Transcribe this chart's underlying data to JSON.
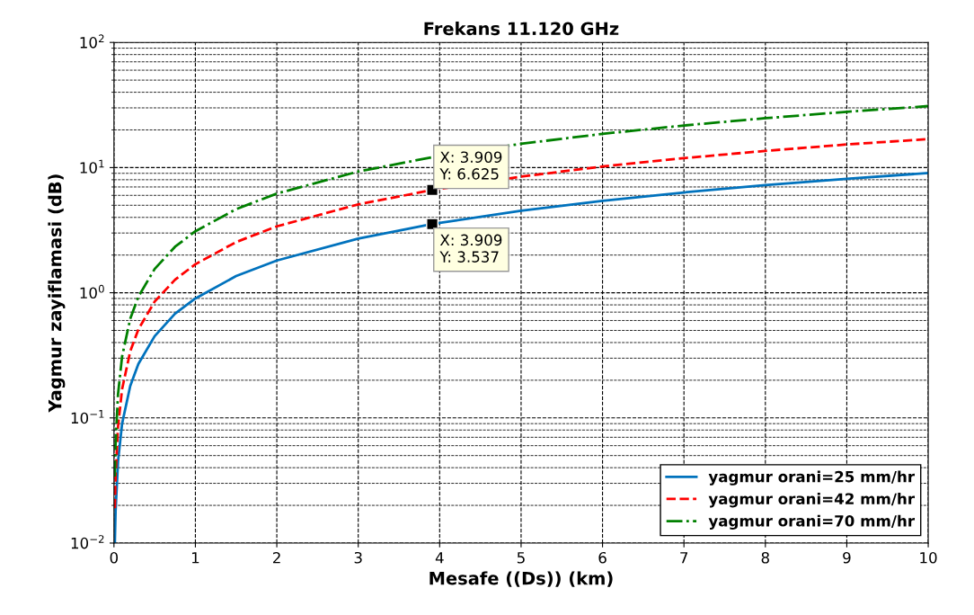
{
  "chart_data": {
    "type": "line",
    "title": "Frekans 11.120 GHz",
    "xlabel": "Mesafe ((Ds)) (km)",
    "ylabel": "Yagmur zayiflamasi (dB)",
    "x": [
      0.011,
      0.02,
      0.05,
      0.1,
      0.2,
      0.3,
      0.5,
      0.75,
      1,
      1.5,
      2,
      3,
      3.909,
      5,
      6,
      7,
      8,
      9,
      10
    ],
    "series": [
      {
        "name": "yagmur orani=25 mm/hr",
        "color": "#0072bd",
        "line_style": "solid",
        "values": [
          0.01,
          0.018,
          0.045,
          0.09,
          0.18,
          0.27,
          0.45,
          0.68,
          0.9,
          1.36,
          1.81,
          2.71,
          3.537,
          4.52,
          5.43,
          6.33,
          7.24,
          8.14,
          9.05
        ]
      },
      {
        "name": "yagmur orani=42 mm/hr",
        "color": "#ff0000",
        "line_style": "dashed",
        "values": [
          0.019,
          0.034,
          0.085,
          0.17,
          0.34,
          0.51,
          0.85,
          1.27,
          1.69,
          2.54,
          3.39,
          5.08,
          6.625,
          8.47,
          10.2,
          11.9,
          13.6,
          15.3,
          16.9
        ]
      },
      {
        "name": "yagmur orani=70 mm/hr",
        "color": "#008000",
        "line_style": "dashdot",
        "values": [
          0.034,
          0.062,
          0.155,
          0.31,
          0.62,
          0.93,
          1.55,
          2.33,
          3.1,
          4.65,
          6.2,
          9.3,
          12.1,
          15.5,
          18.6,
          21.7,
          24.8,
          27.9,
          31.0
        ]
      }
    ],
    "log": "y",
    "xlim": [
      0,
      10
    ],
    "ylim": [
      0.01,
      100
    ],
    "xticks": [
      0,
      1,
      2,
      3,
      4,
      5,
      6,
      7,
      8,
      9,
      10
    ],
    "yticks": [
      {
        "value": 0.01,
        "label": "10$^{−2}$"
      },
      {
        "value": 0.1,
        "label": "10$^{−1}$"
      },
      {
        "value": 1,
        "label": "10$^{0}$"
      },
      {
        "value": 10,
        "label": "10$^{1}$"
      },
      {
        "value": 100,
        "label": "10$^{2}$"
      }
    ],
    "grid": true,
    "legend": "bottom right",
    "annotations": [
      {
        "text": "X: 3.909\nY: 6.625",
        "x": 3.909,
        "y": 6.625
      },
      {
        "text": "X: 3.909\nY: 3.537",
        "x": 3.909,
        "y": 3.537
      }
    ]
  }
}
